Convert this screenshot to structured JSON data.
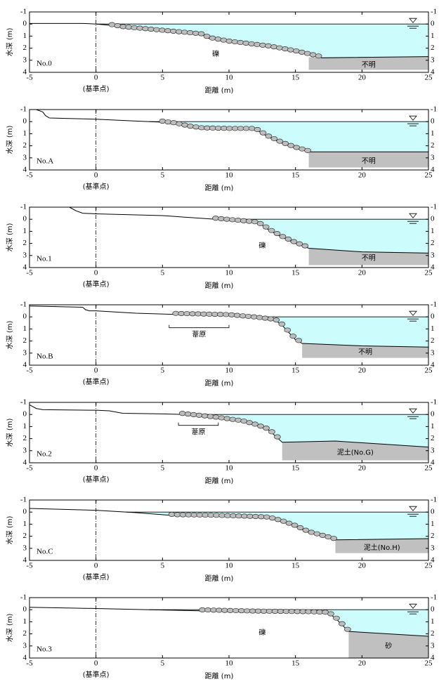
{
  "chart_data": [
    {
      "type": "line",
      "label": "No.0",
      "xlabel": "距離 (m)",
      "ylabel": "水深 (m)",
      "origin_label": "(基準点)",
      "xlim": [
        -5,
        25
      ],
      "ylim": [
        -1,
        4
      ],
      "xticks": [
        -5,
        0,
        5,
        10,
        15,
        20,
        25
      ],
      "yticks": [
        -1,
        0,
        1,
        2,
        3,
        4
      ],
      "ground": {
        "x": [
          -5,
          -1,
          0,
          1,
          2,
          5,
          8,
          8.5,
          10,
          13,
          15,
          17,
          25
        ],
        "y": [
          -0.05,
          -0.05,
          0,
          0.1,
          0.3,
          0.6,
          0.9,
          1.2,
          1.5,
          1.9,
          2.3,
          2.8,
          2.7
        ]
      },
      "gravel": [
        1.2,
        17
      ],
      "layer": {
        "label": "不明",
        "x": [
          16,
          25
        ],
        "top": [
          2.75,
          2.7
        ],
        "bottom": 3.8
      },
      "annotations": [
        "礫"
      ]
    },
    {
      "type": "line",
      "label": "No.A",
      "xlabel": "距離 (m)",
      "ylabel": "水深 (m)",
      "origin_label": "(基準点)",
      "xlim": [
        -5,
        25
      ],
      "ylim": [
        -1,
        4
      ],
      "xticks": [
        -5,
        0,
        5,
        10,
        15,
        20,
        25
      ],
      "yticks": [
        -1,
        0,
        1,
        2,
        3,
        4
      ],
      "ground": {
        "x": [
          -5,
          -4.5,
          -4,
          -3.8,
          -3.5,
          0,
          3,
          5,
          6,
          7,
          8,
          10,
          12,
          13,
          14,
          15,
          16,
          25
        ],
        "y": [
          -1,
          -1,
          -0.8,
          -0.5,
          -0.3,
          -0.2,
          -0.05,
          0.05,
          0.2,
          0.45,
          0.6,
          0.65,
          0.65,
          1.3,
          1.8,
          2.2,
          2.5,
          2.5
        ]
      },
      "gravel": [
        5,
        16
      ],
      "layer": {
        "label": "不明",
        "x": [
          16,
          25
        ],
        "top": [
          2.5,
          2.5
        ],
        "bottom": 3.8
      },
      "annotations": []
    },
    {
      "type": "line",
      "label": "No.1",
      "xlabel": "距離 (m)",
      "ylabel": "水深 (m)",
      "origin_label": "(基準点)",
      "xlim": [
        -5,
        25
      ],
      "ylim": [
        -1,
        4
      ],
      "xticks": [
        -5,
        0,
        5,
        10,
        15,
        20,
        25
      ],
      "yticks": [
        -1,
        0,
        1,
        2,
        3,
        4
      ],
      "ground": {
        "x": [
          -2,
          -1.5,
          -1,
          0,
          5,
          9,
          12,
          12.5,
          13,
          14,
          15,
          16,
          20,
          25
        ],
        "y": [
          -1,
          -0.7,
          -0.5,
          -0.45,
          -0.3,
          0,
          0.3,
          0.5,
          0.9,
          1.5,
          2,
          2.4,
          2.7,
          2.8
        ]
      },
      "gravel": [
        9,
        16
      ],
      "layer": {
        "label": "不明",
        "x": [
          16,
          20,
          25
        ],
        "top": [
          2.4,
          2.7,
          2.8
        ],
        "bottom": 3.8
      },
      "annotations": [
        "礫"
      ]
    },
    {
      "type": "line",
      "label": "No.B",
      "xlabel": "距離 (m)",
      "ylabel": "水深 (m)",
      "origin_label": "(基準点)",
      "xlim": [
        -5,
        25
      ],
      "ylim": [
        -1,
        4
      ],
      "xticks": [
        -5,
        0,
        5,
        10,
        15,
        20,
        25
      ],
      "yticks": [
        -1,
        0,
        1,
        2,
        3,
        4
      ],
      "ground": {
        "x": [
          -5,
          -1,
          -0.8,
          -0.5,
          0,
          3,
          6,
          10,
          12,
          13.5,
          14,
          14.5,
          15,
          15.5,
          20,
          25
        ],
        "y": [
          -0.9,
          -0.8,
          -0.6,
          -0.5,
          -0.5,
          -0.3,
          -0.2,
          -0.1,
          0.1,
          0.3,
          0.7,
          1.3,
          1.9,
          2.2,
          2.4,
          2.5
        ]
      },
      "gravel": [
        6,
        15.5
      ],
      "layer": {
        "label": "不明",
        "x": [
          15.5,
          20,
          25
        ],
        "top": [
          2.2,
          2.4,
          2.5
        ],
        "bottom": 3.4
      },
      "annotations": [],
      "reed": {
        "label": "葦原",
        "range": [
          5.5,
          10
        ]
      }
    },
    {
      "type": "line",
      "label": "No.2",
      "xlabel": "距離 (m)",
      "ylabel": "水深 (m)",
      "origin_label": "(基準点)",
      "xlim": [
        -5,
        25
      ],
      "ylim": [
        -1,
        4
      ],
      "xticks": [
        -5,
        0,
        5,
        10,
        15,
        20,
        25
      ],
      "yticks": [
        -1,
        0,
        1,
        2,
        3,
        4
      ],
      "ground": {
        "x": [
          -5,
          -4.5,
          -4,
          0,
          1,
          2,
          5,
          6.5,
          9,
          11,
          12,
          13,
          13.5,
          14,
          18,
          25
        ],
        "y": [
          -0.8,
          -0.5,
          -0.4,
          -0.35,
          -0.3,
          -0.1,
          -0.05,
          0,
          0.3,
          0.6,
          0.9,
          1.3,
          1.8,
          2.3,
          2.2,
          2.7
        ]
      },
      "gravel": [
        6.5,
        14
      ],
      "layer": {
        "label": "泥土(No.G)",
        "x": [
          14,
          18,
          25
        ],
        "top": [
          2.3,
          2.2,
          2.7
        ],
        "bottom": 3.8
      },
      "annotations": [],
      "reed": {
        "label": "葦原",
        "range": [
          6.2,
          9.2
        ]
      }
    },
    {
      "type": "line",
      "label": "No.C",
      "xlabel": "距離 (m)",
      "ylabel": "水深 (m)",
      "origin_label": "(基準点)",
      "xlim": [
        -5,
        25
      ],
      "ylim": [
        -1,
        4
      ],
      "xticks": [
        -5,
        0,
        5,
        10,
        15,
        20,
        25
      ],
      "yticks": [
        -1,
        0,
        1,
        2,
        3,
        4
      ],
      "ground": {
        "x": [
          -5,
          0,
          3,
          6,
          9,
          12,
          13,
          14,
          15,
          16,
          17,
          18,
          25
        ],
        "y": [
          -0.3,
          -0.15,
          0.05,
          0.3,
          0.35,
          0.45,
          0.5,
          0.8,
          1.2,
          1.7,
          2,
          2.3,
          2.2
        ]
      },
      "gravel": [
        5.7,
        18
      ],
      "layer": {
        "label": "泥土(No.H)",
        "x": [
          18,
          25
        ],
        "top": [
          2.3,
          2.2
        ],
        "bottom": 3.4
      },
      "annotations": []
    },
    {
      "type": "line",
      "label": "No.3",
      "xlabel": "距離 (m)",
      "ylabel": "水深 (m)",
      "origin_label": "(基準点)",
      "xlim": [
        -5,
        25
      ],
      "ylim": [
        -1,
        4
      ],
      "xticks": [
        -5,
        0,
        5,
        10,
        15,
        20,
        25
      ],
      "yticks": [
        -1,
        0,
        1,
        2,
        3,
        4
      ],
      "ground": {
        "x": [
          -5,
          0,
          4,
          8,
          12,
          16,
          17.5,
          18,
          19,
          25
        ],
        "y": [
          -0.2,
          -0.1,
          0,
          0.1,
          0.2,
          0.25,
          0.3,
          0.7,
          1.8,
          2.2
        ]
      },
      "gravel": [
        8,
        19
      ],
      "layer": {
        "label": "砂",
        "x": [
          19,
          25
        ],
        "top": [
          1.8,
          2.2
        ],
        "bottom": 4
      },
      "annotations": [
        "礫"
      ]
    }
  ]
}
